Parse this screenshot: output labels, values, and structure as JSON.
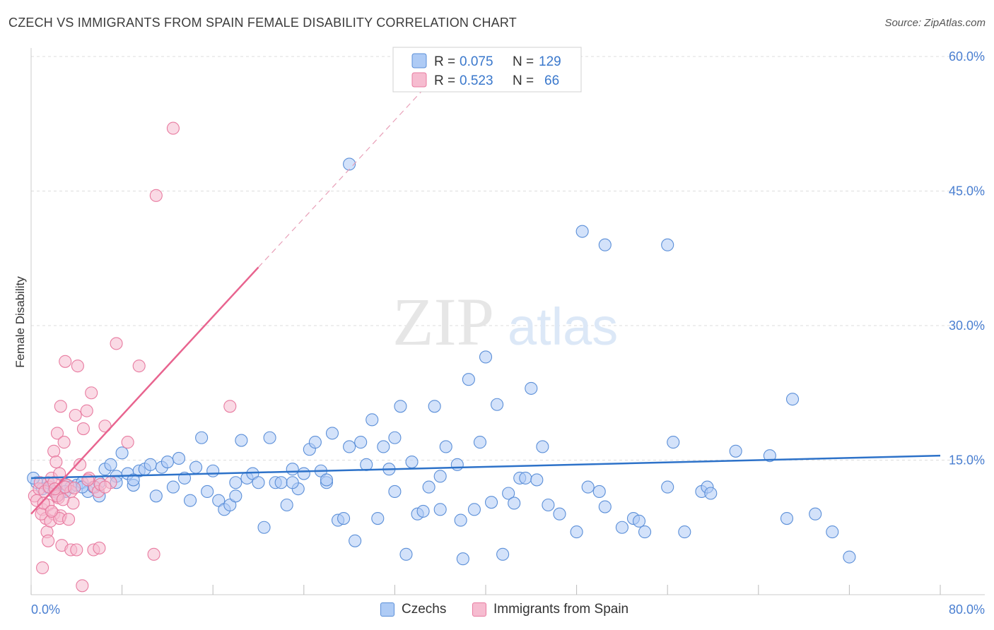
{
  "title": "CZECH VS IMMIGRANTS FROM SPAIN FEMALE DISABILITY CORRELATION CHART",
  "source": "Source: ZipAtlas.com",
  "watermark": {
    "zip": "ZIP",
    "atlas": "atlas"
  },
  "colors": {
    "czech_fill": "#aecbf5",
    "czech_stroke": "#5b8fd8",
    "czech_line": "#2d72c9",
    "spain_fill": "#f6bcd0",
    "spain_stroke": "#e87ba0",
    "spain_line": "#e8648f",
    "axis_text": "#4a7fd1",
    "grid": "#dddddd"
  },
  "legend": {
    "czech": {
      "r_label": "R =",
      "r_value": "0.075",
      "n_label": "N =",
      "n_value": "129"
    },
    "spain": {
      "r_label": "R =",
      "r_value": "0.523",
      "n_label": "N =",
      "n_value": "66"
    }
  },
  "chart_data": {
    "type": "scatter",
    "xlabel": "",
    "ylabel": "Female Disability",
    "xlim": [
      0,
      80
    ],
    "ylim": [
      0,
      60
    ],
    "x_tick_labels": [
      "0.0%",
      "80.0%"
    ],
    "y_tick_labels": [
      {
        "value": 15,
        "label": "15.0%"
      },
      {
        "value": 30,
        "label": "30.0%"
      },
      {
        "value": 45,
        "label": "45.0%"
      },
      {
        "value": 60,
        "label": "60.0%"
      }
    ],
    "grid": true,
    "legend_position": "top-center",
    "series": [
      {
        "name": "Czechs",
        "points": [
          [
            0.5,
            12.5
          ],
          [
            1.0,
            11.8
          ],
          [
            1.5,
            12.0
          ],
          [
            2.0,
            11.5
          ],
          [
            2.5,
            11.2
          ],
          [
            3.0,
            12.3
          ],
          [
            3.5,
            12.0
          ],
          [
            4.0,
            12.2
          ],
          [
            4.5,
            12.5
          ],
          [
            5.0,
            11.5
          ],
          [
            5.5,
            12.0
          ],
          [
            6.0,
            12.5
          ],
          [
            6.5,
            14.0
          ],
          [
            7.0,
            14.5
          ],
          [
            7.5,
            13.2
          ],
          [
            8.0,
            15.8
          ],
          [
            8.5,
            13.5
          ],
          [
            9.0,
            12.2
          ],
          [
            9.5,
            13.8
          ],
          [
            10.0,
            14.0
          ],
          [
            10.5,
            14.5
          ],
          [
            11.0,
            11.0
          ],
          [
            11.5,
            14.2
          ],
          [
            12.0,
            14.8
          ],
          [
            12.5,
            12.0
          ],
          [
            13.0,
            15.2
          ],
          [
            13.5,
            13.0
          ],
          [
            14.0,
            10.5
          ],
          [
            14.5,
            14.2
          ],
          [
            15.0,
            17.5
          ],
          [
            15.5,
            11.5
          ],
          [
            16.0,
            13.8
          ],
          [
            16.5,
            10.5
          ],
          [
            17.0,
            9.5
          ],
          [
            17.5,
            10.0
          ],
          [
            18.0,
            12.5
          ],
          [
            18.5,
            17.2
          ],
          [
            19.0,
            13.0
          ],
          [
            19.5,
            13.5
          ],
          [
            20.0,
            12.5
          ],
          [
            20.5,
            7.5
          ],
          [
            21.0,
            17.5
          ],
          [
            21.5,
            12.5
          ],
          [
            22.0,
            12.5
          ],
          [
            22.5,
            10.0
          ],
          [
            23.0,
            14.0
          ],
          [
            23.5,
            11.8
          ],
          [
            24.0,
            13.5
          ],
          [
            24.5,
            16.2
          ],
          [
            25.0,
            17.0
          ],
          [
            25.5,
            13.8
          ],
          [
            26.0,
            12.5
          ],
          [
            26.5,
            18.0
          ],
          [
            27.0,
            8.3
          ],
          [
            27.5,
            8.5
          ],
          [
            28.0,
            16.5
          ],
          [
            28.5,
            6.0
          ],
          [
            29.0,
            17.0
          ],
          [
            29.5,
            14.5
          ],
          [
            30.0,
            19.5
          ],
          [
            30.5,
            8.5
          ],
          [
            31.0,
            16.5
          ],
          [
            31.5,
            14.0
          ],
          [
            32.0,
            17.5
          ],
          [
            32.5,
            21.0
          ],
          [
            33.0,
            4.5
          ],
          [
            33.5,
            14.8
          ],
          [
            34.0,
            9.0
          ],
          [
            34.5,
            9.3
          ],
          [
            35.0,
            12.0
          ],
          [
            35.5,
            21.0
          ],
          [
            36.0,
            9.5
          ],
          [
            36.5,
            16.5
          ],
          [
            37.5,
            14.5
          ],
          [
            37.8,
            8.3
          ],
          [
            38.0,
            4.0
          ],
          [
            38.5,
            24.0
          ],
          [
            39.0,
            9.5
          ],
          [
            39.5,
            17.0
          ],
          [
            40.0,
            26.5
          ],
          [
            40.5,
            10.3
          ],
          [
            41.0,
            21.2
          ],
          [
            41.5,
            4.5
          ],
          [
            42.0,
            11.3
          ],
          [
            42.5,
            10.2
          ],
          [
            43.0,
            13.0
          ],
          [
            43.5,
            13.0
          ],
          [
            44.0,
            23.0
          ],
          [
            45.0,
            16.5
          ],
          [
            45.5,
            10.0
          ],
          [
            46.5,
            9.0
          ],
          [
            48.0,
            7.0
          ],
          [
            49.0,
            12.0
          ],
          [
            50.0,
            11.5
          ],
          [
            50.5,
            9.8
          ],
          [
            52.0,
            7.5
          ],
          [
            53.0,
            8.5
          ],
          [
            53.5,
            8.2
          ],
          [
            54.0,
            7.0
          ],
          [
            56.0,
            12.0
          ],
          [
            56.5,
            17.0
          ],
          [
            57.5,
            7.0
          ],
          [
            59.0,
            11.5
          ],
          [
            59.5,
            12.0
          ],
          [
            59.8,
            11.3
          ],
          [
            62.0,
            16.0
          ],
          [
            65.0,
            15.5
          ],
          [
            66.5,
            8.5
          ],
          [
            67.0,
            21.8
          ],
          [
            69.0,
            9.0
          ],
          [
            70.5,
            7.0
          ],
          [
            72.0,
            4.2
          ],
          [
            48.5,
            40.5
          ],
          [
            50.5,
            39.0
          ],
          [
            56.0,
            39.0
          ],
          [
            28.0,
            48.0
          ],
          [
            1.5,
            12.5
          ],
          [
            3.0,
            11.5
          ],
          [
            4.5,
            12.0
          ],
          [
            6.0,
            11.0
          ],
          [
            7.5,
            12.5
          ],
          [
            9.0,
            12.8
          ],
          [
            18.0,
            11.0
          ],
          [
            23.0,
            12.5
          ],
          [
            26.0,
            12.8
          ],
          [
            32.0,
            11.5
          ],
          [
            36.0,
            13.2
          ],
          [
            44.5,
            12.8
          ],
          [
            0.2,
            13.0
          ]
        ]
      },
      {
        "name": "Immigrants from Spain",
        "points": [
          [
            0.3,
            11.0
          ],
          [
            0.5,
            10.5
          ],
          [
            0.7,
            11.8
          ],
          [
            0.8,
            12.5
          ],
          [
            1.0,
            9.5
          ],
          [
            1.2,
            11.5
          ],
          [
            1.3,
            8.5
          ],
          [
            1.5,
            10.0
          ],
          [
            1.6,
            12.0
          ],
          [
            1.8,
            13.0
          ],
          [
            2.0,
            9.0
          ],
          [
            2.2,
            11.2
          ],
          [
            2.4,
            10.8
          ],
          [
            2.6,
            8.8
          ],
          [
            0.9,
            9.0
          ],
          [
            1.1,
            10.2
          ],
          [
            1.4,
            7.0
          ],
          [
            1.7,
            8.2
          ],
          [
            2.0,
            12.5
          ],
          [
            2.3,
            11.0
          ],
          [
            2.5,
            8.5
          ],
          [
            2.7,
            5.5
          ],
          [
            3.0,
            26.0
          ],
          [
            3.2,
            12.2
          ],
          [
            3.5,
            11.5
          ],
          [
            3.7,
            10.2
          ],
          [
            3.9,
            20.0
          ],
          [
            4.1,
            25.5
          ],
          [
            4.3,
            14.5
          ],
          [
            4.6,
            18.5
          ],
          [
            4.9,
            20.5
          ],
          [
            5.1,
            13.0
          ],
          [
            5.3,
            22.5
          ],
          [
            5.6,
            12.0
          ],
          [
            5.9,
            11.5
          ],
          [
            6.1,
            12.3
          ],
          [
            6.5,
            18.8
          ],
          [
            7.0,
            12.5
          ],
          [
            7.5,
            28.0
          ],
          [
            8.5,
            17.0
          ],
          [
            9.5,
            25.5
          ],
          [
            11.0,
            44.5
          ],
          [
            12.5,
            52.0
          ],
          [
            17.5,
            21.0
          ],
          [
            2.0,
            16.0
          ],
          [
            2.3,
            18.0
          ],
          [
            2.6,
            21.0
          ],
          [
            2.9,
            17.0
          ],
          [
            1.0,
            3.0
          ],
          [
            3.5,
            5.0
          ],
          [
            4.0,
            5.0
          ],
          [
            5.5,
            5.0
          ],
          [
            6.0,
            5.2
          ],
          [
            4.5,
            1.0
          ],
          [
            1.5,
            6.0
          ],
          [
            3.0,
            12.0
          ],
          [
            2.5,
            13.5
          ],
          [
            1.8,
            9.3
          ],
          [
            2.1,
            11.8
          ],
          [
            2.8,
            10.6
          ],
          [
            3.3,
            8.4
          ],
          [
            3.8,
            11.9
          ],
          [
            5.0,
            12.8
          ],
          [
            6.5,
            12.0
          ],
          [
            10.8,
            4.5
          ],
          [
            2.2,
            14.8
          ]
        ]
      }
    ],
    "trend_lines": [
      {
        "series": "Czechs",
        "x": [
          0,
          80
        ],
        "y": [
          13.0,
          15.5
        ]
      },
      {
        "series": "Immigrants from Spain",
        "solid_x": [
          0,
          20
        ],
        "solid_y": [
          9.0,
          36.5
        ],
        "dashed_x": [
          20,
          35
        ],
        "dashed_y": [
          36.5,
          57.0
        ]
      }
    ]
  },
  "bottom_legend": {
    "czech": "Czechs",
    "spain": "Immigrants from Spain"
  }
}
